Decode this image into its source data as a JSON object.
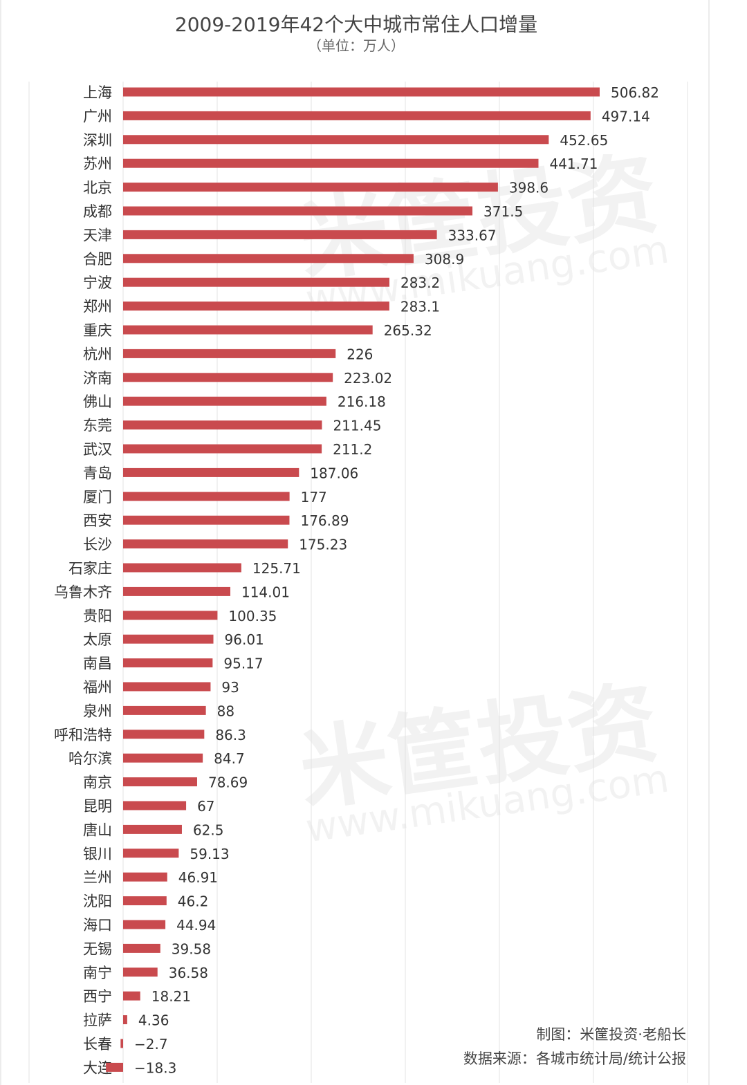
{
  "header": {
    "title": "2009-2019年42个大中城市常住人口增量",
    "subtitle": "（单位：万人）"
  },
  "chart_data": {
    "type": "bar",
    "orientation": "horizontal",
    "title": "2009-2019年42个大中城市常住人口增量",
    "subtitle": "（单位：万人）",
    "xlabel": "",
    "ylabel": "",
    "grid": true,
    "bar_color": "#c94a4e",
    "categories": [
      "上海",
      "广州",
      "深圳",
      "苏州",
      "北京",
      "成都",
      "天津",
      "合肥",
      "宁波",
      "郑州",
      "重庆",
      "杭州",
      "济南",
      "佛山",
      "东莞",
      "武汉",
      "青岛",
      "厦门",
      "西安",
      "长沙",
      "石家庄",
      "乌鲁木齐",
      "贵阳",
      "太原",
      "南昌",
      "福州",
      "泉州",
      "呼和浩特",
      "哈尔滨",
      "南京",
      "昆明",
      "唐山",
      "银川",
      "兰州",
      "沈阳",
      "海口",
      "无锡",
      "南宁",
      "西宁",
      "拉萨",
      "长春",
      "大连"
    ],
    "values": [
      506.82,
      497.14,
      452.65,
      441.71,
      398.6,
      371.5,
      333.67,
      308.9,
      283.2,
      283.1,
      265.32,
      226,
      223.02,
      216.18,
      211.45,
      211.2,
      187.06,
      177,
      176.89,
      175.23,
      125.71,
      114.01,
      100.35,
      96.01,
      95.17,
      93,
      88,
      86.3,
      84.7,
      78.69,
      67,
      62.5,
      59.13,
      46.91,
      46.2,
      44.94,
      39.58,
      36.58,
      18.21,
      4.36,
      -2.7,
      -18.3
    ],
    "labels": [
      "506.82",
      "497.14",
      "452.65",
      "441.71",
      "398.6",
      "371.5",
      "333.67",
      "308.9",
      "283.2",
      "283.1",
      "265.32",
      "226",
      "223.02",
      "216.18",
      "211.45",
      "211.2",
      "187.06",
      "177",
      "176.89",
      "175.23",
      "125.71",
      "114.01",
      "100.35",
      "96.01",
      "95.17",
      "93",
      "88",
      "86.3",
      "84.7",
      "78.69",
      "67",
      "62.5",
      "59.13",
      "46.91",
      "46.2",
      "44.94",
      "39.58",
      "36.58",
      "18.21",
      "4.36",
      "−2.7",
      "−18.3"
    ],
    "xlim": [
      -20,
      560
    ]
  },
  "watermark": {
    "text": "米筐投资",
    "url": "www.mikuang.com"
  },
  "credits": {
    "maker": "制图：米筐投资·老船长",
    "source": "数据来源：各城市统计局/统计公报"
  }
}
